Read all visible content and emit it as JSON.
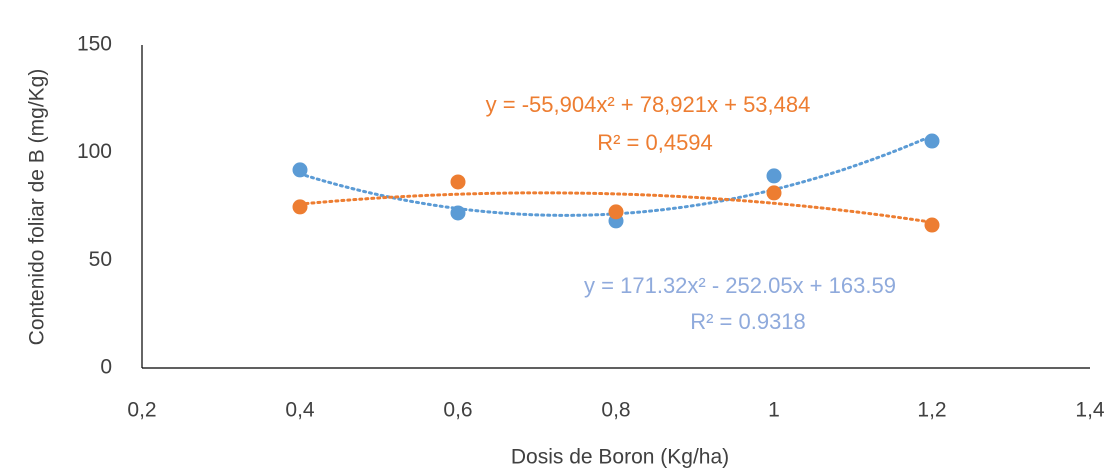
{
  "chart_data": {
    "type": "scatter",
    "x_label": "Dosis de Boron (Kg/ha)",
    "y_label": "Contenido foliar de B (mg/Kg)",
    "x": [
      0.4,
      0.6,
      0.8,
      1,
      1.2
    ],
    "xlim": [
      0.2,
      1.4
    ],
    "xticks": [
      {
        "value": 0.2,
        "label": "0,2"
      },
      {
        "value": 0.4,
        "label": "0,4"
      },
      {
        "value": 0.6,
        "label": "0,6"
      },
      {
        "value": 0.8,
        "label": "0,8"
      },
      1,
      {
        "value": 1.2,
        "label": "1,2"
      },
      {
        "value": 1.4,
        "label": "1,4"
      }
    ],
    "ylim": [
      0,
      150
    ],
    "yticks": [
      0,
      50,
      100,
      150
    ],
    "grid": false,
    "series": [
      {
        "color": "#5b9bd5",
        "values": [
          92,
          72,
          68.3,
          89.2,
          105.4
        ],
        "trendline": {
          "coefficients": [
            171.32,
            -252.05,
            163.59
          ],
          "label_color": "#8faadc",
          "equation": "y = 171.32x² - 252.05x + 163.59",
          "r2": "R² = 0.9318"
        }
      },
      {
        "color": "#ed7d31",
        "values": [
          74.8,
          86.4,
          72.5,
          81.3,
          66.4
        ],
        "trendline": {
          "coefficients": [
            -55.904,
            78.921,
            53.484
          ],
          "label_color": "#ed7d31",
          "equation": "y = -55,904x² + 78,921x + 53,484",
          "r2": "R² = 0,4594"
        }
      }
    ]
  }
}
